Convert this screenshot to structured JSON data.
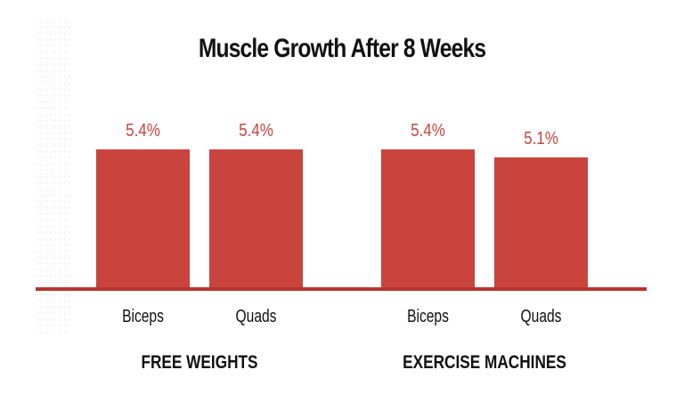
{
  "chart_data": {
    "type": "bar",
    "title": "Muscle Growth After 8 Weeks",
    "xlabel": "",
    "ylabel": "",
    "ylim": [
      0,
      5.4
    ],
    "grid": false,
    "legend": null,
    "groups": [
      {
        "name": "FREE WEIGHTS",
        "categories": [
          "Biceps",
          "Quads"
        ],
        "values": [
          5.4,
          5.4
        ],
        "labels": [
          "5.4%",
          "5.4%"
        ]
      },
      {
        "name": "EXERCISE MACHINES",
        "categories": [
          "Biceps",
          "Quads"
        ],
        "values": [
          5.4,
          5.1
        ],
        "labels": [
          "5.4%",
          "5.1%"
        ]
      }
    ],
    "categories": [
      "Biceps",
      "Quads",
      "Biceps",
      "Quads"
    ],
    "values": [
      5.4,
      5.4,
      5.4,
      5.1
    ]
  },
  "colors": {
    "bar": "#c8443d",
    "value_text": "#c8443d",
    "baseline": "#b8342e"
  },
  "labels": {
    "title": "Muscle Growth After 8 Weeks",
    "bars": [
      {
        "category": "Biceps",
        "value_label": "5.4%"
      },
      {
        "category": "Quads",
        "value_label": "5.4%"
      },
      {
        "category": "Biceps",
        "value_label": "5.4%"
      },
      {
        "category": "Quads",
        "value_label": "5.1%"
      }
    ],
    "groups": [
      "FREE WEIGHTS",
      "EXERCISE MACHINES"
    ]
  }
}
